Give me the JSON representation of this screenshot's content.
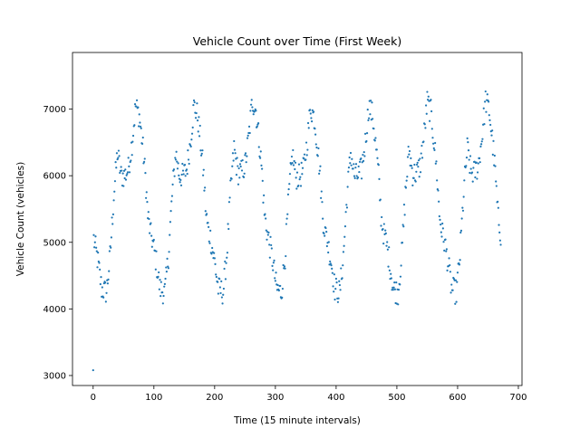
{
  "chart_data": {
    "type": "scatter",
    "title": "Vehicle Count over Time (First Week)",
    "xlabel": "Time (15 minute intervals)",
    "ylabel": "Vehicle Count (vehicles)",
    "xlim": [
      -34,
      706
    ],
    "ylim": [
      2850,
      7850
    ],
    "xticks": [
      0,
      100,
      200,
      300,
      400,
      500,
      600,
      700
    ],
    "yticks": [
      3000,
      4000,
      5000,
      6000,
      7000
    ],
    "grid": false,
    "legend": "none",
    "point_color": "#1f77b4",
    "series": [
      {
        "x_start": 0,
        "x_step": 1,
        "points": 672,
        "day_length": 96,
        "first_value": 3080,
        "daily_anchors": [
          [
            0,
            5100
          ],
          [
            8,
            4700
          ],
          [
            14,
            4300
          ],
          [
            22,
            4250
          ],
          [
            28,
            4800
          ],
          [
            34,
            5700
          ],
          [
            40,
            6350
          ],
          [
            46,
            6000
          ],
          [
            52,
            6000
          ],
          [
            58,
            6100
          ],
          [
            64,
            6500
          ],
          [
            70,
            7050
          ],
          [
            76,
            6900
          ],
          [
            82,
            6400
          ],
          [
            86,
            6000
          ],
          [
            90,
            5400
          ],
          [
            95,
            5100
          ]
        ],
        "daily_scale": [
          1.0,
          1.0,
          1.03,
          0.99,
          1.0,
          1.02,
          1.03
        ]
      }
    ]
  }
}
